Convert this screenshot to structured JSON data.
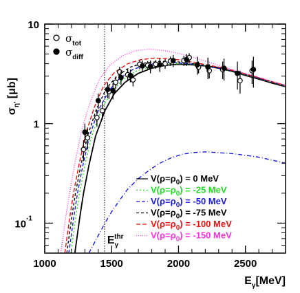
{
  "chart_data": {
    "type": "line",
    "xaxis": {
      "label_main": "E",
      "label_sub": "γ",
      "label_unit": "[MeV]",
      "range": [
        1000,
        2800
      ],
      "ticks": [
        1000,
        1500,
        2000,
        2500
      ],
      "tick_labels": [
        "1000",
        "1500",
        "2000",
        "2500"
      ]
    },
    "yaxis": {
      "label_main": "σ",
      "label_sub": "η'",
      "label_unit": " [μb]",
      "scale": "log",
      "range": [
        0.05,
        10
      ],
      "ticks": [
        0.1,
        1,
        10
      ],
      "tick_labels": [
        {
          "base": "10",
          "exp": "-1"
        },
        {
          "base": "1",
          "exp": ""
        },
        {
          "base": "10",
          "exp": ""
        }
      ]
    },
    "threshold": {
      "x": 1447,
      "label_main": "E",
      "label_sub": "γ",
      "label_sup": "thr"
    },
    "data_legend": [
      {
        "symbol": "σ",
        "sub": "tot",
        "marker": "open-circle"
      },
      {
        "symbol": "σ",
        "sub": "diff",
        "marker": "filled-circle"
      }
    ],
    "data_points": {
      "sigma_tot": [
        {
          "x": 1290,
          "y": 0.55,
          "err": 0.13
        },
        {
          "x": 1320,
          "y": 0.72,
          "err": 0.17
        },
        {
          "x": 1390,
          "y": 1.15,
          "err": 0.22
        },
        {
          "x": 1430,
          "y": 1.35,
          "err": 0.26
        },
        {
          "x": 1480,
          "y": 2.1,
          "err": 0.33
        },
        {
          "x": 1530,
          "y": 2.6,
          "err": 0.36
        },
        {
          "x": 1560,
          "y": 3.3,
          "err": 0.42
        },
        {
          "x": 1620,
          "y": 3.1,
          "err": 0.4
        },
        {
          "x": 1660,
          "y": 2.75,
          "err": 0.38
        },
        {
          "x": 1710,
          "y": 3.95,
          "err": 0.4
        },
        {
          "x": 1770,
          "y": 3.85,
          "err": 0.4
        },
        {
          "x": 1830,
          "y": 3.95,
          "err": 0.4
        },
        {
          "x": 1900,
          "y": 4.0,
          "err": 0.45
        },
        {
          "x": 1940,
          "y": 4.25,
          "err": 0.45
        },
        {
          "x": 2040,
          "y": 4.3,
          "err": 0.5
        },
        {
          "x": 2080,
          "y": 4.6,
          "err": 0.5
        },
        {
          "x": 2150,
          "y": 3.7,
          "err": 0.5
        },
        {
          "x": 2230,
          "y": 3.4,
          "err": 0.55
        },
        {
          "x": 2330,
          "y": 3.5,
          "err": 0.7
        },
        {
          "x": 2460,
          "y": 2.7,
          "err": 0.7
        },
        {
          "x": 2550,
          "y": 3.4,
          "err": 0.9
        }
      ],
      "sigma_diff": [
        {
          "x": 1300,
          "y": 0.82,
          "err": 0.18
        },
        {
          "x": 1400,
          "y": 1.7,
          "err": 0.3
        },
        {
          "x": 1470,
          "y": 2.2,
          "err": 0.4
        },
        {
          "x": 1510,
          "y": 2.15,
          "err": 0.4
        },
        {
          "x": 1570,
          "y": 2.9,
          "err": 0.45
        },
        {
          "x": 1640,
          "y": 3.05,
          "err": 0.45
        },
        {
          "x": 1730,
          "y": 3.8,
          "err": 0.5
        },
        {
          "x": 1790,
          "y": 3.75,
          "err": 0.55
        },
        {
          "x": 1860,
          "y": 3.9,
          "err": 0.6
        },
        {
          "x": 1960,
          "y": 4.3,
          "err": 0.6
        },
        {
          "x": 2060,
          "y": 4.4,
          "err": 0.6
        },
        {
          "x": 2140,
          "y": 3.9,
          "err": 0.8
        },
        {
          "x": 2220,
          "y": 3.7,
          "err": 0.9
        },
        {
          "x": 2340,
          "y": 3.6,
          "err": 0.9
        },
        {
          "x": 2440,
          "y": 3.2,
          "err": 1.0
        },
        {
          "x": 2560,
          "y": 3.5,
          "err": 1.2
        }
      ]
    },
    "series": [
      {
        "name": "V(ρ=ρ",
        "sub": "0",
        "tail": ") = 0 MeV",
        "color": "#000000",
        "dash": "none",
        "x": [
          1225,
          1240,
          1260,
          1290,
          1330,
          1380,
          1450,
          1520,
          1600,
          1700,
          1800,
          1900,
          2000,
          2100,
          2200,
          2300,
          2400,
          2500,
          2600,
          2700,
          2800
        ],
        "y": [
          0.05,
          0.07,
          0.11,
          0.2,
          0.38,
          0.75,
          1.35,
          2.0,
          2.6,
          3.2,
          3.6,
          3.85,
          3.95,
          3.9,
          3.8,
          3.6,
          3.35,
          3.05,
          2.8,
          2.55,
          2.35
        ]
      },
      {
        "name": "V(ρ=ρ",
        "sub": "0",
        "tail": ") = -25 MeV",
        "color": "#22dd22",
        "dash": "2,3",
        "x": [
          1195,
          1210,
          1230,
          1260,
          1300,
          1350,
          1420,
          1500,
          1580,
          1680,
          1800,
          1900,
          2000,
          2100,
          2200,
          2300,
          2400,
          2500,
          2600,
          2700,
          2800
        ],
        "y": [
          0.05,
          0.07,
          0.11,
          0.2,
          0.38,
          0.75,
          1.35,
          2.1,
          2.75,
          3.35,
          3.75,
          3.95,
          4.0,
          3.95,
          3.82,
          3.62,
          3.38,
          3.1,
          2.85,
          2.6,
          2.38
        ]
      },
      {
        "name": "V(ρ=ρ",
        "sub": "0",
        "tail": ") = -50 MeV",
        "color": "#1a1adb",
        "dash": "5,3",
        "x": [
          1180,
          1195,
          1215,
          1245,
          1285,
          1335,
          1400,
          1480,
          1560,
          1660,
          1760,
          1860,
          1960,
          2060,
          2160,
          2300,
          2400,
          2500,
          2600,
          2700,
          2800
        ],
        "y": [
          0.05,
          0.07,
          0.11,
          0.2,
          0.38,
          0.75,
          1.35,
          2.15,
          2.85,
          3.5,
          3.9,
          4.05,
          4.1,
          4.02,
          3.88,
          3.62,
          3.4,
          3.12,
          2.87,
          2.62,
          2.4
        ]
      },
      {
        "name": "V(ρ=ρ",
        "sub": "0",
        "tail": ") = -75 MeV",
        "color": "#000000",
        "dash": "4,3",
        "x": [
          1165,
          1180,
          1200,
          1230,
          1270,
          1320,
          1385,
          1460,
          1540,
          1640,
          1740,
          1840,
          1940,
          2040,
          2140,
          2300,
          2400,
          2500,
          2600,
          2700,
          2800
        ],
        "y": [
          0.05,
          0.07,
          0.11,
          0.2,
          0.38,
          0.75,
          1.38,
          2.25,
          3.0,
          3.7,
          4.05,
          4.2,
          4.22,
          4.12,
          3.95,
          3.65,
          3.42,
          3.14,
          2.88,
          2.63,
          2.41
        ]
      },
      {
        "name": "V(ρ=ρ",
        "sub": "0",
        "tail": ") = -100 MeV",
        "color": "#ee1111",
        "dash": "6,3",
        "x": [
          1150,
          1165,
          1185,
          1215,
          1255,
          1305,
          1370,
          1440,
          1520,
          1620,
          1720,
          1820,
          1920,
          2020,
          2120,
          2300,
          2400,
          2500,
          2600,
          2700,
          2800
        ],
        "y": [
          0.05,
          0.07,
          0.11,
          0.2,
          0.38,
          0.78,
          1.45,
          2.4,
          3.25,
          4.0,
          4.4,
          4.55,
          4.5,
          4.35,
          4.1,
          3.7,
          3.45,
          3.16,
          2.9,
          2.64,
          2.42
        ]
      },
      {
        "name": "V(ρ=ρ",
        "sub": "0",
        "tail": ") = -150 MeV",
        "color": "#ff33dd",
        "dash": "1,2",
        "x": [
          1120,
          1135,
          1155,
          1185,
          1225,
          1275,
          1340,
          1410,
          1490,
          1580,
          1680,
          1780,
          1880,
          1980,
          2080,
          2200,
          2300,
          2400,
          2500,
          2600,
          2700,
          2800
        ],
        "y": [
          0.05,
          0.07,
          0.11,
          0.2,
          0.4,
          0.85,
          1.65,
          2.8,
          3.9,
          4.8,
          5.4,
          5.6,
          5.45,
          5.15,
          4.75,
          4.25,
          3.85,
          3.5,
          3.18,
          2.9,
          2.65,
          2.42
        ]
      },
      {
        "name": "",
        "sub": "",
        "tail": "",
        "color": "#1a1adb",
        "dash": "6,3,1,3",
        "x": [
          1330,
          1400,
          1450,
          1500,
          1560,
          1620,
          1700,
          1780,
          1860,
          1940,
          2020,
          2100,
          2200,
          2300,
          2400,
          2500,
          2600,
          2700,
          2800
        ],
        "y": [
          0.05,
          0.075,
          0.1,
          0.13,
          0.17,
          0.22,
          0.28,
          0.34,
          0.4,
          0.45,
          0.49,
          0.51,
          0.52,
          0.51,
          0.5,
          0.48,
          0.46,
          0.43,
          0.4
        ]
      }
    ]
  }
}
